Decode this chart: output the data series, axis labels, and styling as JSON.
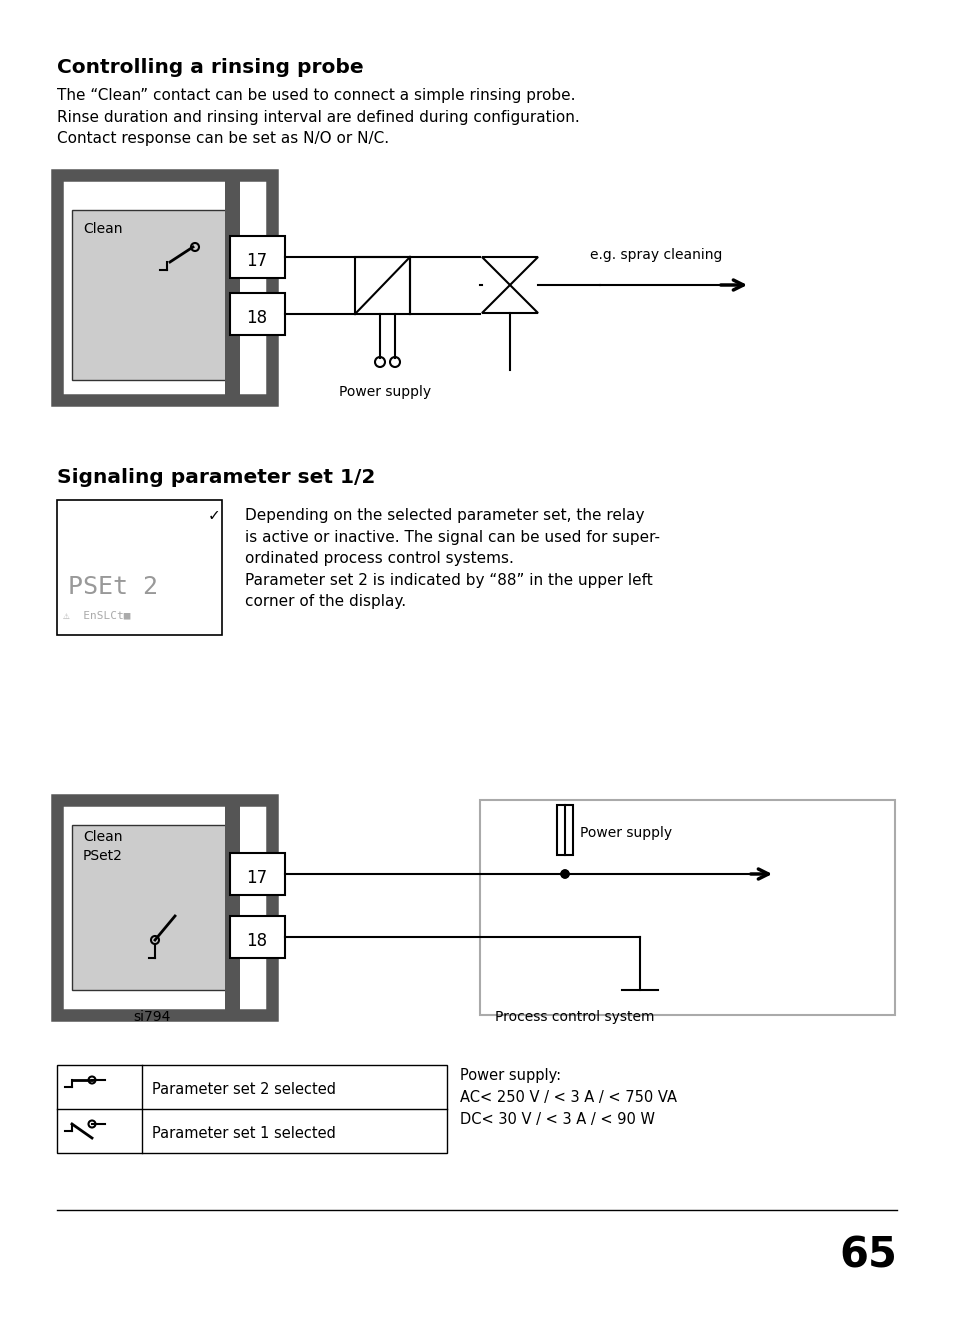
{
  "title1": "Controlling a rinsing probe",
  "body1": "The “Clean” contact can be used to connect a simple rinsing probe.\nRinse duration and rinsing interval are defined during configuration.\nContact response can be set as N/O or N/C.",
  "title2": "Signaling parameter set 1/2",
  "body2a": "Depending on the selected parameter set, the relay\nis active or inactive. The signal can be used for super-\nordinated process control systems.\nParameter set 2 is indicated by “88” in the upper left\ncorner of the display.",
  "label_clean": "Clean",
  "label_17a": "17",
  "label_18a": "18",
  "label_power_supply1": "Power supply",
  "label_spray": "e.g. spray cleaning",
  "label_clean2": "Clean\nPSet2",
  "label_si794": "si794",
  "label_17b": "17",
  "label_18b": "18",
  "label_power_supply2": "Power supply",
  "label_process": "Process control system",
  "legend_row1": "Parameter set 1 selected",
  "legend_row2": "Parameter set 2 selected",
  "power_info": "Power supply:\nAC< 250 V / < 3 A / < 750 VA\nDC< 30 V / < 3 A / < 90 W",
  "page_number": "65",
  "bg_color": "#ffffff",
  "text_color": "#000000",
  "gray_dark": "#555555",
  "gray_light": "#cccccc"
}
